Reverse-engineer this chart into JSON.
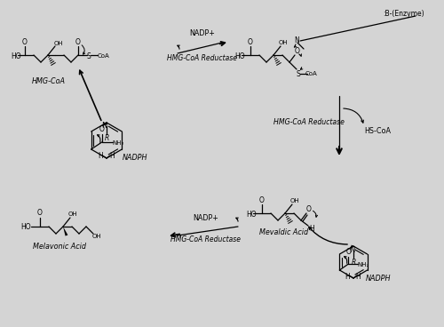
{
  "bg_color": "#d4d4d4",
  "figsize": [
    5.0,
    3.68
  ],
  "dpi": 100,
  "lw": 0.9,
  "labels": {
    "HMG_CoA": "HMG-CoA",
    "NADPH_top": "NADPH",
    "NADP_top": "NADP+",
    "HMG_CoA_Reductase_top": "HMG-CoA Reductase",
    "B_Enzyme": ":B-(Enzyme)",
    "HMG_CoA_Reductase_right": "HMG-CoA Reductase",
    "HS_CoA": "HS-CoA",
    "NADP_bottom": "NADP+",
    "HMG_CoA_Reductase_bottom": "HMG-CoA Reductase",
    "Mevaldic_Acid": "Mevaldic Acid",
    "NADPH_bottom": "NADPH",
    "Melavonic_Acid": "Melavonic Acid"
  },
  "fs": 5.5,
  "fs_label": 6.5,
  "fs_enzyme": 5.8
}
